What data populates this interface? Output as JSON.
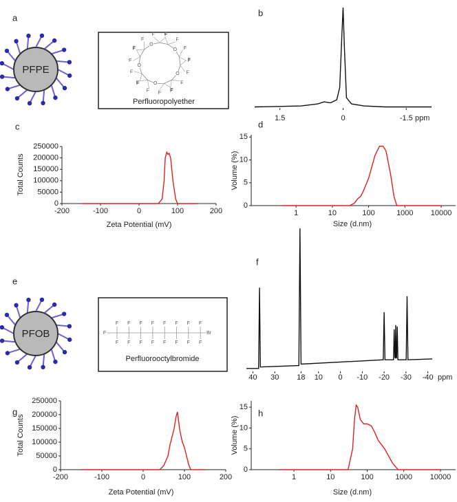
{
  "chart_data": [
    {
      "type": "line",
      "panel_label": "b",
      "x_label": "ppm",
      "xlim": [
        2.1,
        -2.1
      ],
      "xticks": [
        1.5,
        0,
        -1.5
      ],
      "ylim": [
        0,
        100
      ],
      "series": [
        {
          "color": "#111111",
          "x": [
            2.1,
            1.0,
            0.6,
            0.45,
            0.3,
            0.15,
            0.08,
            0.03,
            0,
            -0.03,
            -0.08,
            -0.2,
            -0.5,
            -1,
            -2.1
          ],
          "values": [
            1,
            2,
            4,
            6,
            5,
            8,
            20,
            70,
            98,
            60,
            10,
            4,
            2,
            1,
            1
          ]
        }
      ]
    },
    {
      "type": "line",
      "panel_label": "c",
      "x_label": "Zeta Potential (mV)",
      "y_label": "Total Counts",
      "xlim": [
        -200,
        200
      ],
      "xticks": [
        -200,
        -100,
        0,
        100,
        200
      ],
      "ylim": [
        0,
        250000
      ],
      "yticks": [
        0,
        50000,
        100000,
        150000,
        200000,
        250000
      ],
      "series": [
        {
          "color": "#e02020",
          "x": [
            -150,
            50,
            60,
            65,
            68,
            72,
            75,
            78,
            82,
            88,
            95,
            100,
            150
          ],
          "values": [
            0,
            0,
            20000,
            100000,
            200000,
            225000,
            215000,
            220000,
            200000,
            100000,
            20000,
            0,
            0
          ]
        }
      ]
    },
    {
      "type": "line",
      "panel_label": "d",
      "x_label": "Size (d.nm)",
      "y_label": "Volume (%)",
      "xscale": "log",
      "xlim": [
        0.058,
        25000
      ],
      "xticks": [
        1,
        10,
        100,
        1000,
        10000
      ],
      "ylim": [
        0,
        15.5
      ],
      "yticks": [
        0,
        5,
        10,
        15
      ],
      "series": [
        {
          "color": "#e02020",
          "x": [
            0.4,
            30,
            40,
            50,
            60,
            70,
            100,
            150,
            200,
            250,
            300,
            400,
            500,
            600,
            10000
          ],
          "values": [
            0,
            0,
            0.5,
            1.5,
            2,
            3,
            6,
            11,
            13,
            13,
            12,
            7,
            2,
            0,
            0
          ]
        }
      ]
    },
    {
      "type": "line",
      "panel_label": "f",
      "x_label": "ppm",
      "xlim": [
        43,
        -42
      ],
      "xticks": [
        40,
        30,
        18,
        10,
        0,
        -10,
        -20,
        -30,
        -40
      ],
      "ylim": [
        0,
        100
      ],
      "series": [
        {
          "color": "#111111",
          "x": [
            43,
            37.4,
            37,
            36.6,
            19,
            18.5,
            18,
            -19.6,
            -20,
            -20.4,
            -24.3,
            -24.6,
            -24.9,
            -25.1,
            -25.3,
            -25.5,
            -25.7,
            -26,
            -26.3,
            -30.1,
            -30.5,
            -30.9,
            -42
          ],
          "values": [
            2,
            2,
            58,
            3,
            4,
            99,
            5,
            8,
            41,
            8,
            8,
            29,
            10,
            9,
            32,
            10,
            9,
            31,
            8,
            8,
            52,
            8,
            8.6
          ]
        }
      ]
    },
    {
      "type": "line",
      "panel_label": "g",
      "x_label": "Zeta Potential (mV)",
      "y_label": "Total Counts",
      "xlim": [
        -200,
        200
      ],
      "xticks": [
        -200,
        -100,
        0,
        100,
        200
      ],
      "ylim": [
        0,
        250000
      ],
      "yticks": [
        0,
        50000,
        100000,
        150000,
        200000,
        250000
      ],
      "series": [
        {
          "color": "#e02020",
          "x": [
            -150,
            15,
            40,
            50,
            60,
            65,
            70,
            75,
            80,
            83,
            88,
            92,
            95,
            100,
            105,
            110,
            115,
            150
          ],
          "values": [
            0,
            0,
            0,
            15000,
            50000,
            90000,
            120000,
            150000,
            195000,
            210000,
            150000,
            120000,
            100000,
            80000,
            50000,
            20000,
            0,
            0
          ]
        }
      ]
    },
    {
      "type": "line",
      "panel_label": "h",
      "x_label": "Size (d.nm)",
      "y_label": "Volume (%)",
      "xscale": "log",
      "xlim": [
        0.068,
        26000
      ],
      "xticks": [
        1,
        10,
        100,
        1000,
        10000
      ],
      "ylim": [
        0,
        16.5
      ],
      "yticks": [
        0,
        5,
        10,
        15
      ],
      "series": [
        {
          "color": "#e02020",
          "x": [
            0.4,
            30,
            40,
            45,
            50,
            55,
            65,
            80,
            100,
            130,
            160,
            200,
            300,
            400,
            500,
            700,
            10000
          ],
          "values": [
            0,
            0,
            5,
            12,
            15.5,
            15,
            12,
            11,
            11,
            10.5,
            9,
            7,
            5,
            3,
            1.5,
            0,
            0
          ]
        }
      ]
    }
  ],
  "diagrams": [
    {
      "panel_label": "a",
      "particle_label": "PFPE",
      "caption": "Perfluoropolyether",
      "atoms": [
        "F",
        "F",
        "F",
        "F",
        "O",
        "F",
        "F",
        "F",
        "F",
        "O",
        "F",
        "F",
        "F",
        "F",
        "O",
        "F",
        "F",
        "F",
        "F",
        "O",
        "F",
        "F",
        "F",
        "F",
        "O"
      ]
    },
    {
      "panel_label": "e",
      "particle_label": "PFOB",
      "caption": "Perfluorooctylbromide",
      "left_end": "F",
      "substituents": [
        "F",
        "F",
        "F",
        "F",
        "F",
        "F",
        "F",
        "F",
        "F",
        "F",
        "F",
        "F",
        "F",
        "F",
        "F",
        "F"
      ],
      "right_end": "Br"
    }
  ]
}
